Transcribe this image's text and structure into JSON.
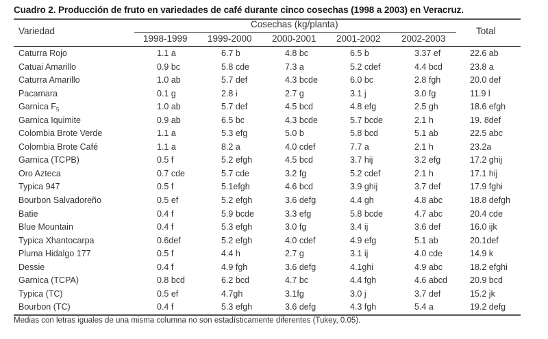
{
  "title": "Cuadro 2. Producción de fruto en variedades de café durante cinco cosechas (1998 a 2003) en Veracruz.",
  "header": {
    "variety": "Variedad",
    "group": "Cosechas (kg/planta)",
    "total": "Total",
    "years": [
      "1998-1999",
      "1999-2000",
      "2000-2001",
      "2001-2002",
      "2002-2003"
    ]
  },
  "rows": [
    {
      "variety": "Caturra Rojo",
      "v1": "1.1 a",
      "v2": "6.7 b",
      "v3": "4.8 bc",
      "v4": "6.5 b",
      "v5": "3.37 ef",
      "total": "22.6 ab"
    },
    {
      "variety": "Catuai Amarillo",
      "v1": "0.9 bc",
      "v2": "5.8 cde",
      "v3": "7.3 a",
      "v4": "5.2 cdef",
      "v5": "4.4 bcd",
      "total": "23.8 a"
    },
    {
      "variety": "Caturra Amarillo",
      "v1": "1.0 ab",
      "v2": "5.7 def",
      "v3": "4.3 bcde",
      "v4": "6.0 bc",
      "v5": "2.8 fgh",
      "total": "20.0 def"
    },
    {
      "variety": "Pacamara",
      "v1": "0.1 g",
      "v2": "2.8 i",
      "v3": "2.7 g",
      "v4": "3.1 j",
      "v5": "3.0 fg",
      "total": "11.9 l"
    },
    {
      "variety": "Garnica F",
      "variety_sub": "5",
      "v1": "1.0 ab",
      "v2": "5.7 def",
      "v3": "4.5 bcd",
      "v4": "4.8 efg",
      "v5": "2.5 gh",
      "total": "18.6 efgh"
    },
    {
      "variety": "Garnica Iquimite",
      "v1": "0.9 ab",
      "v2": "6.5 bc",
      "v3": "4.3 bcde",
      "v4": "5.7 bcde",
      "v5": "2.1 h",
      "total": "19. 8def"
    },
    {
      "variety": "Colombia Brote Verde",
      "v1": "1.1 a",
      "v2": "5.3 efg",
      "v3": "5.0 b",
      "v4": "5.8 bcd",
      "v5": "5.1 ab",
      "total": "22.5 abc"
    },
    {
      "variety": "Colombia Brote Café",
      "v1": "1.1 a",
      "v2": "8.2 a",
      "v3": "4.0 cdef",
      "v4": "7.7 a",
      "v5": "2.1 h",
      "total": "23.2a"
    },
    {
      "variety": "Garnica (TCPB)",
      "v1": "0.5 f",
      "v2": "5.2 efgh",
      "v3": "4.5 bcd",
      "v4": "3.7 hij",
      "v5": "3.2 efg",
      "total": "17.2 ghij"
    },
    {
      "variety": "Oro Azteca",
      "v1": "0.7 cde",
      "v2": "5.7 cde",
      "v3": "3.2 fg",
      "v4": "5.2 cdef",
      "v5": "2.1 h",
      "total": "17.1 hij"
    },
    {
      "variety": "Typica 947",
      "v1": "0.5 f",
      "v2": "5.1efgh",
      "v3": "4.6 bcd",
      "v4": "3.9 ghij",
      "v5": "3.7 def",
      "total": "17.9 fghi"
    },
    {
      "variety": "Bourbon Salvadoreño",
      "v1": "0.5 ef",
      "v2": "5.2 efgh",
      "v3": "3.6 defg",
      "v4": "4.4 gh",
      "v5": "4.8 abc",
      "total": "18.8 defgh"
    },
    {
      "variety": "Batie",
      "v1": "0.4 f",
      "v2": "5.9 bcde",
      "v3": "3.3 efg",
      "v4": "5.8 bcde",
      "v5": "4.7 abc",
      "total": "20.4 cde"
    },
    {
      "variety": "Blue Mountain",
      "v1": "0.4 f",
      "v2": "5.3 efgh",
      "v3": "3.0 fg",
      "v4": "3.4 ij",
      "v5": "3.6 def",
      "total": "16.0 ijk"
    },
    {
      "variety": "Typica Xhantocarpa",
      "v1": "0.6def",
      "v2": "5.2 efgh",
      "v3": "4.0 cdef",
      "v4": "4.9 efg",
      "v5": "5.1 ab",
      "total": "20.1def"
    },
    {
      "variety": "Pluma Hidalgo 177",
      "v1": "0.5 f",
      "v2": "4.4 h",
      "v3": "2.7 g",
      "v4": "3.1 ij",
      "v5": "4.0 cde",
      "total": "14.9 k"
    },
    {
      "variety": "Dessie",
      "v1": "0.4 f",
      "v2": "4.9 fgh",
      "v3": "3.6 defg",
      "v4": "4.1ghi",
      "v5": "4.9 abc",
      "total": "18.2 efghi"
    },
    {
      "variety": "Garnica (TCPA)",
      "v1": "0.8 bcd",
      "v2": "6.2 bcd",
      "v3": "4.7 bc",
      "v4": "4.4 fgh",
      "v5": "4.6 abcd",
      "total": "20.9 bcd"
    },
    {
      "variety": "Typica (TC)",
      "v1": "0.5 ef",
      "v2": "4.7gh",
      "v3": "3.1fg",
      "v4": "3.0 j",
      "v5": "3.7 def",
      "total": "15.2 jk"
    },
    {
      "variety": "Bourbon (TC)",
      "v1": "0.4 f",
      "v2": "5.3 efgh",
      "v3": "3.6 defg",
      "v4": "4.3 fgh",
      "v5": "5.4 a",
      "total": "19.2 defg"
    }
  ],
  "footnote": "Medias con letras iguales de una misma columna no son estadísticamente diferentes (Tukey, 0.05)."
}
